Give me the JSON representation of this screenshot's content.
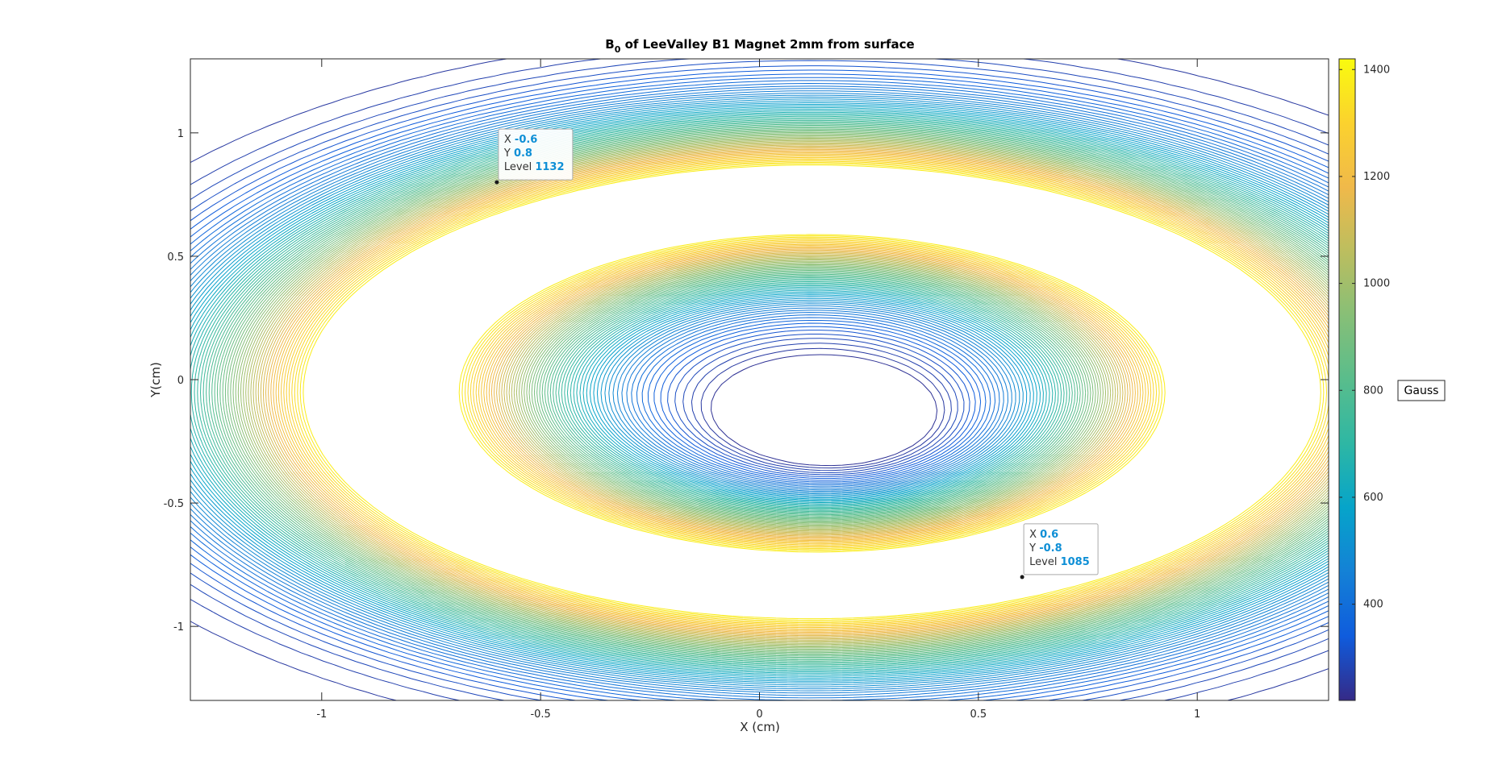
{
  "chart_data": {
    "type": "contour",
    "title_main": "B",
    "title_sub": "0",
    "title_rest": " of LeeValley B1 Magnet 2mm from surface",
    "xlabel": "X (cm)",
    "ylabel": "Y(cm)",
    "xlim": [
      -1.3,
      1.3
    ],
    "ylim": [
      -1.3,
      1.3
    ],
    "x_ticks": [
      -1,
      -0.5,
      0,
      0.5,
      1
    ],
    "x_tick_labels": [
      "-1",
      "-0.5",
      "0",
      "0.5",
      "1"
    ],
    "y_ticks": [
      -1,
      -0.5,
      0,
      0.5,
      1
    ],
    "y_tick_labels": [
      "-1",
      "-0.5",
      "0",
      "0.5",
      "1"
    ],
    "colorbar": {
      "range": [
        220,
        1420
      ],
      "ticks": [
        400,
        600,
        800,
        1000,
        1200,
        1400
      ],
      "tick_labels": [
        "400",
        "600",
        "800",
        "1000",
        "1200",
        "1400"
      ],
      "unit": "Gauss",
      "colormap": "parula"
    },
    "datatips": [
      {
        "x_key": "X",
        "x": "-0.6",
        "y_key": "Y",
        "y": "0.8",
        "level_key": "Level",
        "level": "1132"
      },
      {
        "x_key": "X",
        "x": "0.6",
        "y_key": "Y",
        "y": "-0.8",
        "level_key": "Level",
        "level": "1085"
      }
    ]
  }
}
